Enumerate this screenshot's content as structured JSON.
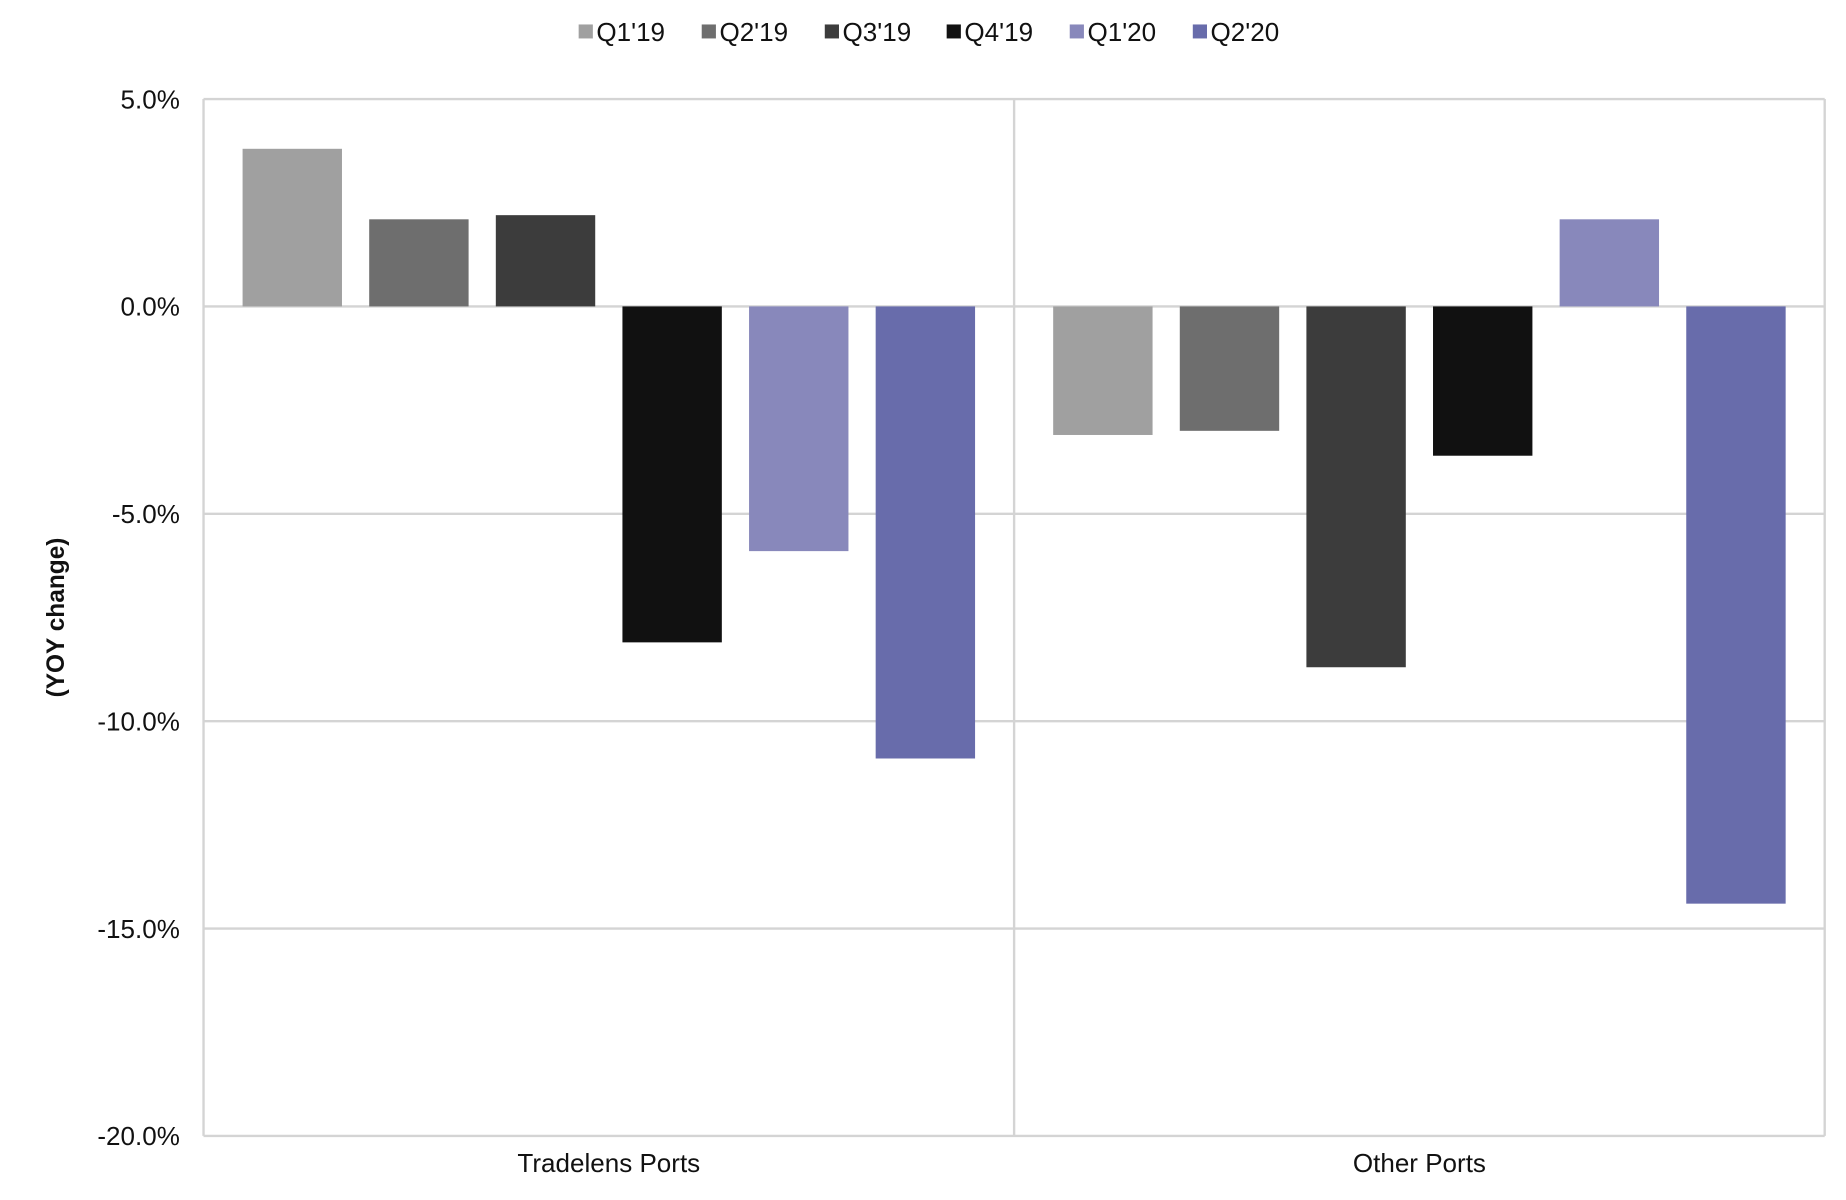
{
  "chart_data": {
    "type": "bar",
    "title": "",
    "xlabel": "",
    "ylabel": "(YOY change)",
    "ylim": [
      -20,
      5
    ],
    "yticks": [
      5,
      0,
      -5,
      -10,
      -15,
      -20
    ],
    "ytick_labels": [
      "5.0%",
      "0.0%",
      "-5.0%",
      "-10.0%",
      "-15.0%",
      "-20.0%"
    ],
    "grid": true,
    "legend_position": "top-center",
    "categories": [
      "Tradelens Ports",
      "Other Ports"
    ],
    "series": [
      {
        "name": "Q1'19",
        "color": "#a0a0a0",
        "values": [
          3.8,
          -3.1
        ]
      },
      {
        "name": "Q2'19",
        "color": "#6e6e6e",
        "values": [
          2.1,
          -3.0
        ]
      },
      {
        "name": "Q3'19",
        "color": "#3c3c3c",
        "values": [
          2.2,
          -8.7
        ]
      },
      {
        "name": "Q4'19",
        "color": "#111111",
        "values": [
          -8.1,
          -3.6
        ]
      },
      {
        "name": "Q1'20",
        "color": "#8888bb",
        "values": [
          -5.9,
          2.1
        ]
      },
      {
        "name": "Q2'20",
        "color": "#686cab",
        "values": [
          -10.9,
          -14.4
        ]
      }
    ]
  }
}
